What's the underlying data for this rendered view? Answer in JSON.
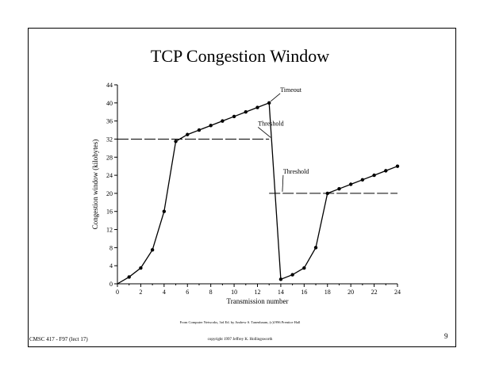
{
  "slide": {
    "title": "TCP Congestion Window",
    "credit": "From Computer Networks, 3rd Ed. by Andrew S. Tanenbaum, (c)1996 Prentice Hall",
    "footer_left": "CMSC 417 - F97  (lect 17)",
    "footer_center": "copyright 1997 Jeffrey K. Hollingsworth",
    "page_number": "9"
  },
  "chart_data": {
    "type": "line",
    "xlabel": "Transmission number",
    "ylabel": "Congestion window (kilobytes)",
    "xlim": [
      0,
      24
    ],
    "ylim": [
      0,
      44
    ],
    "xticks": [
      0,
      2,
      4,
      6,
      8,
      10,
      12,
      14,
      16,
      18,
      20,
      22,
      24
    ],
    "yticks": [
      0,
      4,
      8,
      12,
      16,
      20,
      24,
      28,
      32,
      36,
      40,
      44
    ],
    "grid": false,
    "series": [
      {
        "name": "",
        "x": [
          0,
          1,
          2,
          3,
          4,
          5,
          6,
          7,
          8,
          9,
          10,
          11,
          12,
          13,
          14,
          15,
          16,
          17,
          18,
          19,
          20,
          21,
          22,
          23,
          24
        ],
        "y": [
          0,
          1.5,
          3.5,
          7.5,
          16,
          31.5,
          33,
          34,
          35,
          36,
          37,
          38,
          39,
          40,
          1,
          2,
          3.5,
          8,
          20,
          21,
          22,
          23,
          24,
          25,
          26
        ]
      }
    ],
    "thresholds": [
      {
        "label": "Threshold",
        "value": 32,
        "x_range": [
          0,
          13
        ]
      },
      {
        "label": "Threshold",
        "value": 20,
        "x_range": [
          13,
          24
        ]
      }
    ],
    "annotations": [
      {
        "text": "Timeout",
        "x": 13,
        "y": 40
      },
      {
        "text": "Threshold",
        "x": 13,
        "y": 32
      },
      {
        "text": "Threshold",
        "x": 14,
        "y": 20
      }
    ]
  }
}
